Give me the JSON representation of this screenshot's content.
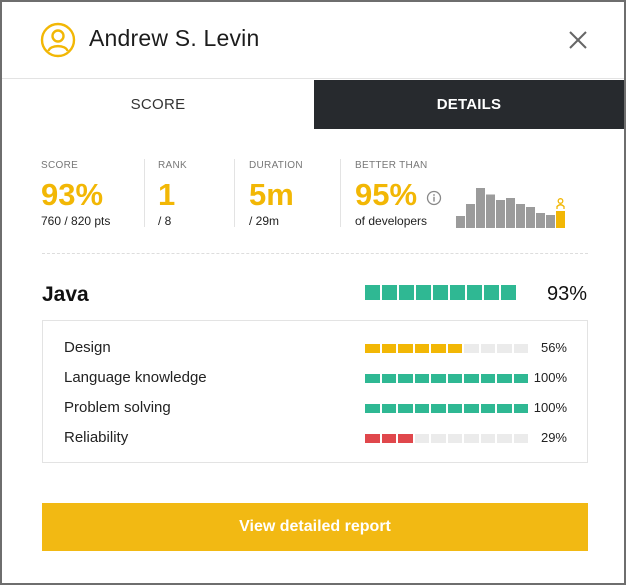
{
  "header": {
    "user_name": "Andrew S. Levin",
    "avatar_icon": "user-circle-icon",
    "close_icon": "close-icon"
  },
  "tabs": [
    {
      "label": "SCORE",
      "active": false
    },
    {
      "label": "DETAILS",
      "active": true
    }
  ],
  "stats": {
    "score": {
      "label": "SCORE",
      "value": "93%",
      "sub": "760 / 820 pts"
    },
    "rank": {
      "label": "RANK",
      "value": "1",
      "sub": "/ 8"
    },
    "duration": {
      "label": "DURATION",
      "value": "5m",
      "sub": "/ 29m"
    },
    "better_than": {
      "label": "BETTER THAN",
      "value": "95%",
      "sub": "of developers",
      "info_icon": "info-icon"
    }
  },
  "histogram": {
    "bars": [
      0.24,
      0.48,
      0.8,
      0.67,
      0.56,
      0.6,
      0.48,
      0.42,
      0.3,
      0.26,
      0.34
    ],
    "highlight_index": 10,
    "marker_icon": "person-icon",
    "bar_color": "#9b9b9b",
    "highlight_color": "#f2b705"
  },
  "skill": {
    "name": "Java",
    "percent": "93%",
    "fill": 0.93,
    "color": "#2fb893"
  },
  "breakdown": [
    {
      "label": "Design",
      "percent": "56%",
      "fill": 0.56,
      "color": "#f2b705"
    },
    {
      "label": "Language knowledge",
      "percent": "100%",
      "fill": 1.0,
      "color": "#2fb893"
    },
    {
      "label": "Problem solving",
      "percent": "100%",
      "fill": 1.0,
      "color": "#2fb893"
    },
    {
      "label": "Reliability",
      "percent": "29%",
      "fill": 0.29,
      "color": "#e0474c"
    }
  ],
  "cta": {
    "label": "View detailed report"
  },
  "colors": {
    "accent": "#f2b705",
    "empty_segment": "#ebebeb",
    "dark_tab": "#272a2e"
  }
}
